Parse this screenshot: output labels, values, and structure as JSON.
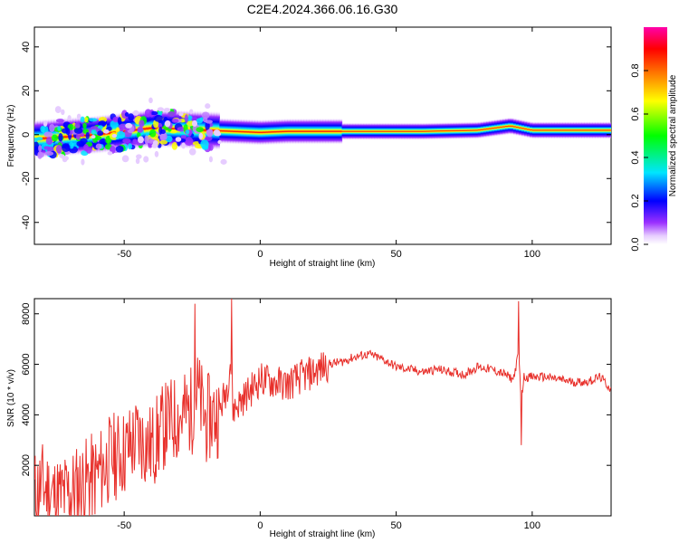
{
  "chart_data": [
    {
      "type": "heatmap",
      "title": "C2E4.2024.366.06.16.G30",
      "xlabel": "Height of straight line (km)",
      "ylabel": "Frequency (Hz)",
      "xlim": [
        -83,
        129
      ],
      "ylim": [
        -50,
        49
      ],
      "xticks": [
        -50,
        0,
        50,
        100
      ],
      "xtick_labels": [
        "-50",
        "0",
        "50",
        "100"
      ],
      "yticks": [
        -40,
        -20,
        0,
        20,
        40
      ],
      "ytick_labels": [
        "-40",
        "-20",
        "0",
        "20",
        "40"
      ],
      "colorbar": {
        "label": "Normalized spectral amplitude",
        "range": [
          0,
          1
        ],
        "ticks": [
          0.0,
          0.2,
          0.4,
          0.6,
          0.8
        ],
        "tick_labels": [
          "0.0",
          "0.2",
          "0.4",
          "0.6",
          "0.8"
        ],
        "colormap": [
          "#ffffff",
          "#9b30ff",
          "#0000ff",
          "#00e5ff",
          "#00ff00",
          "#ffff00",
          "#ff8000",
          "#ff0000",
          "#ff00aa"
        ]
      },
      "ridge": {
        "description_points_x": [
          -83,
          -60,
          -40,
          -20,
          -10,
          0,
          10,
          30,
          60,
          80,
          92,
          100,
          129
        ],
        "center_frequency": [
          -2,
          0,
          3,
          2,
          1.5,
          1,
          1.5,
          1.5,
          1.5,
          2,
          4,
          2,
          2
        ]
      }
    },
    {
      "type": "line",
      "xlabel": "Height of straight line (km)",
      "ylabel": "SNR (10 * v/v)",
      "xlim": [
        -83,
        129
      ],
      "ylim": [
        0,
        8600
      ],
      "xticks": [
        -50,
        0,
        50,
        100
      ],
      "xtick_labels": [
        "-50",
        "0",
        "50",
        "100"
      ],
      "yticks": [
        2000,
        4000,
        6000,
        8000
      ],
      "ytick_labels": [
        "2000",
        "4000",
        "6000",
        "8000"
      ],
      "line_color": "#e8302b",
      "series": [
        {
          "name": "SNR",
          "x": [
            -83,
            -80,
            -75,
            -70,
            -65,
            -60,
            -55,
            -50,
            -45,
            -40,
            -35,
            -30,
            -25,
            -24,
            -20,
            -15,
            -12,
            -11,
            -10,
            -5,
            0,
            5,
            10,
            15,
            20,
            25,
            30,
            35,
            40,
            45,
            50,
            55,
            60,
            65,
            70,
            75,
            80,
            85,
            90,
            93,
            95,
            96,
            97,
            100,
            105,
            110,
            115,
            120,
            125,
            129
          ],
          "y": [
            900,
            1200,
            700,
            900,
            1300,
            1600,
            2300,
            2500,
            3100,
            2700,
            3600,
            3900,
            4200,
            5200,
            3800,
            4100,
            5200,
            6200,
            4200,
            4800,
            5400,
            5300,
            5200,
            5500,
            5700,
            6000,
            6100,
            6300,
            6400,
            6200,
            5900,
            5800,
            5700,
            5800,
            5700,
            5600,
            5900,
            5800,
            5600,
            5400,
            6400,
            4600,
            5500,
            5500,
            5500,
            5400,
            5300,
            5300,
            5500,
            5000
          ],
          "spikes": [
            {
              "x": -24,
              "y": 8400
            },
            {
              "x": -10.5,
              "y": 8600
            },
            {
              "x": 95,
              "y": 8500
            },
            {
              "x": 96,
              "y": 2800
            }
          ]
        }
      ]
    }
  ]
}
